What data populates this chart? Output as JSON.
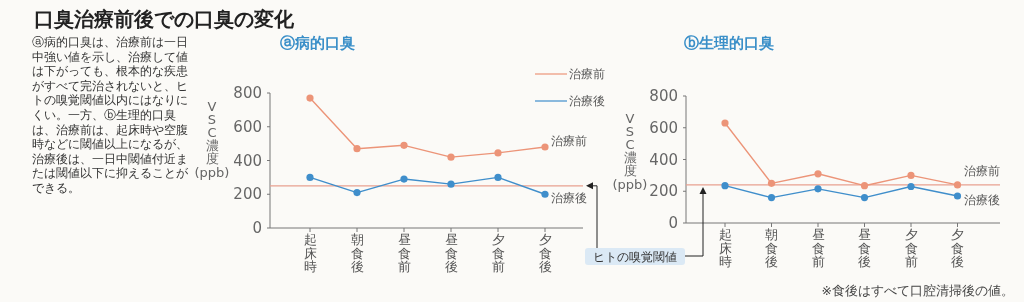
{
  "chart_data": [
    {
      "type": "other",
      "title": "口臭治療前後での口臭の変化",
      "annotations": [
        "ⓐ病的口臭は、治療前は一日中強い値を示し、治療して値は下がっても、根本的な疾患がすべて完治されないと、ヒトの嗅覚閾値以内にはなりにくい。一方、ⓑ生理的口臭は、治療前は、起床時や空腹時などに閾値以上になるが、治療後は、一日中閾値付近または閾値以下に抑えることができる。"
      ]
    },
    {
      "type": "line",
      "title": "ⓐ病的口臭",
      "ylabel": "VSC濃度(ppb)",
      "categories": [
        "起床時",
        "朝食後",
        "昼食前",
        "昼食後",
        "夕食前",
        "夕食後"
      ],
      "ylim": [
        0,
        800
      ],
      "yticks": [
        0,
        200,
        400,
        600,
        800
      ],
      "marker": "circle",
      "legend": "right",
      "grid": false,
      "series": [
        {
          "name": "治療前",
          "color": "#ec9478",
          "values": [
            770,
            470,
            490,
            420,
            445,
            480
          ]
        },
        {
          "name": "治療後",
          "color": "#3f8ecb",
          "values": [
            300,
            210,
            290,
            260,
            300,
            200
          ]
        }
      ],
      "ref_lines": [
        {
          "axis": "y",
          "value": 250,
          "color": "#e8a090"
        }
      ]
    },
    {
      "type": "line",
      "title": "ⓑ生理的口臭",
      "ylabel": "VSC濃度(ppb)",
      "categories": [
        "起床時",
        "朝食後",
        "昼食前",
        "昼食後",
        "夕食前",
        "夕食後"
      ],
      "ylim": [
        0,
        800
      ],
      "yticks": [
        0,
        200,
        400,
        600,
        800
      ],
      "marker": "circle",
      "grid": false,
      "series": [
        {
          "name": "治療前",
          "color": "#ec9478",
          "values": [
            630,
            250,
            310,
            235,
            300,
            240
          ]
        },
        {
          "name": "治療後",
          "color": "#3f8ecb",
          "values": [
            235,
            160,
            215,
            160,
            230,
            170
          ]
        }
      ],
      "ref_lines": [
        {
          "axis": "y",
          "value": 240,
          "label": "ヒトの嗅覚閾値",
          "color": "#e8a090"
        }
      ],
      "annotations": [
        "※食後はすべて口腔清掃後の値。"
      ]
    }
  ]
}
